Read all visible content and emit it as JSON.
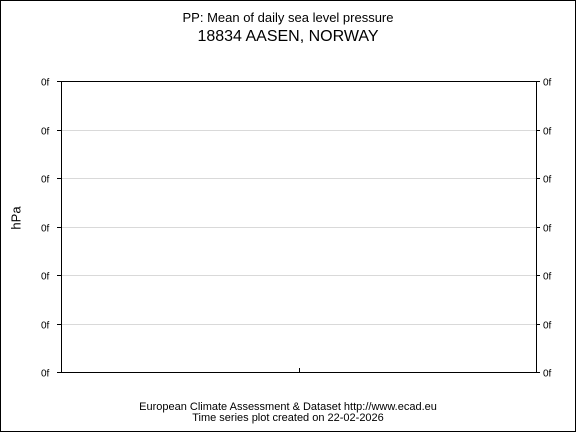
{
  "title": "PP: Mean of daily sea level pressure",
  "subtitle": "18834 AASEN, NORWAY",
  "footer": {
    "line1": "European Climate Assessment & Dataset  http://www.ecad.eu",
    "line2": "Time series plot created on 22-02-2026"
  },
  "chart_data": {
    "type": "line",
    "title": "PP: Mean of daily sea level pressure",
    "subtitle": "18834 AASEN, NORWAY",
    "xlabel": "",
    "ylabel": "hPa",
    "y_tick_labels": [
      "0f",
      "0f",
      "0f",
      "0f",
      "0f",
      "0f",
      "0f"
    ],
    "series": [],
    "grid": true,
    "legend": "none",
    "colors": {
      "grid": "#d9d9d9",
      "axis": "#000000"
    }
  }
}
